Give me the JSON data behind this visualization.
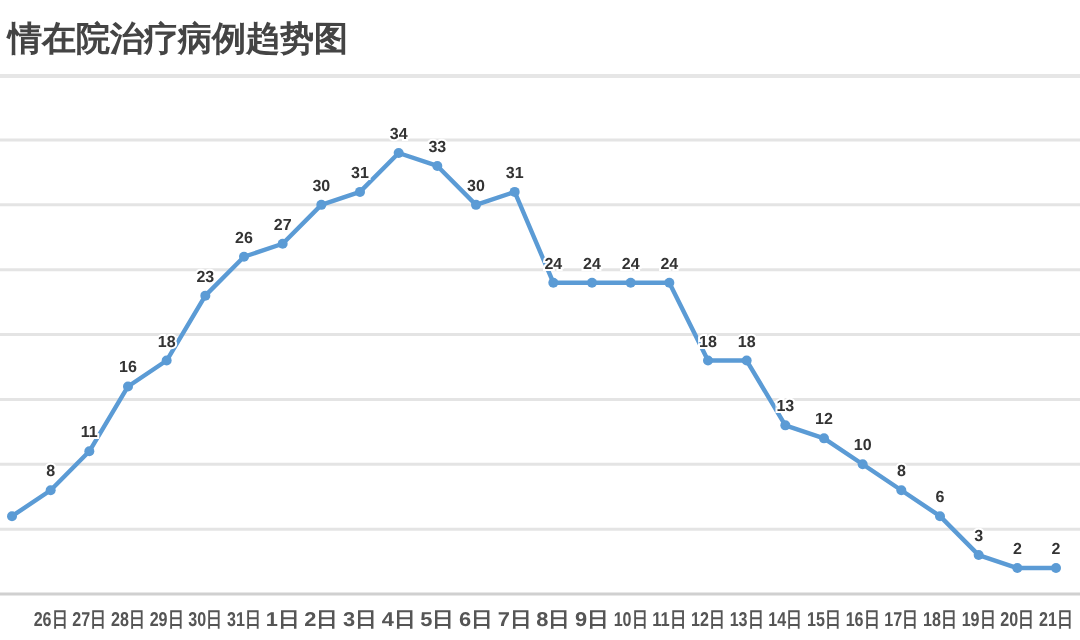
{
  "chart_data": {
    "type": "line",
    "title": "情在院治疗病例趋势图",
    "categories": [
      null,
      "26日",
      "27日",
      "28日",
      "29日",
      "30日",
      "31日",
      "1日",
      "2日",
      "3日",
      "4日",
      "5日",
      "6日",
      "7日",
      "8日",
      "9日",
      "10日",
      "11日",
      "12日",
      "13日",
      "14日",
      "15日",
      "16日",
      "17日",
      "18日",
      "19日",
      "20日",
      "21日"
    ],
    "series": [
      {
        "color": "#5b9bd5",
        "values": [
          6,
          8,
          11,
          16,
          18,
          23,
          26,
          27,
          30,
          31,
          34,
          33,
          30,
          31,
          24,
          24,
          24,
          24,
          18,
          18,
          13,
          12,
          10,
          8,
          6,
          3,
          2,
          2
        ],
        "value_labels": [
          null,
          "8",
          "11",
          "16",
          "18",
          "23",
          "26",
          "27",
          "30",
          "31",
          "34",
          "33",
          "30",
          "31",
          "24",
          "24",
          "24",
          "24",
          "18",
          "18",
          "13",
          "12",
          "10",
          "8",
          "6",
          "3",
          "2",
          "2"
        ]
      }
    ],
    "ylim": [
      0,
      35
    ],
    "yticks": [
      {
        "value": 0,
        "label": null
      },
      {
        "value": 5,
        "label": null
      },
      {
        "value": 10,
        "label": null
      },
      {
        "value": 15,
        "label": null
      },
      {
        "value": 20,
        "label": null
      },
      {
        "value": 25,
        "label": null
      },
      {
        "value": 30,
        "label": null
      },
      {
        "value": 35,
        "label": null
      }
    ],
    "grid": "y",
    "marker": "circle",
    "line_style": "solid",
    "tick_labels": "x"
  }
}
